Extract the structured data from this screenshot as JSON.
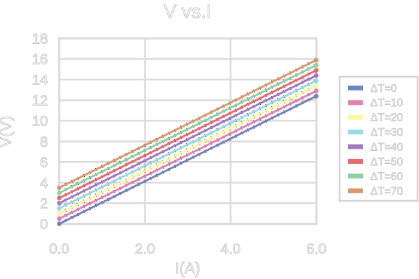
{
  "chart_data": {
    "type": "line",
    "title": "V vs.I",
    "xlabel": "I(A)",
    "ylabel": "V(V)",
    "xlim": [
      0,
      6
    ],
    "ylim": [
      0,
      18
    ],
    "grid": true,
    "legend_position": "right-outside",
    "xticks": {
      "values": [
        0,
        2,
        4,
        6
      ],
      "labels": [
        "0.0",
        "2.0",
        "4.0",
        "6.0"
      ]
    },
    "yticks": {
      "values": [
        0,
        2,
        4,
        6,
        8,
        10,
        12,
        14,
        16,
        18
      ],
      "labels": [
        "0",
        "2",
        "4",
        "6",
        "8",
        "10",
        "12",
        "14",
        "16",
        "18"
      ]
    },
    "x": [
      0,
      6
    ],
    "series": [
      {
        "name": "ΔT=0",
        "color": "#7183c1",
        "values": [
          0.0,
          12.4
        ]
      },
      {
        "name": "ΔT=10",
        "color": "#e77fb2",
        "values": [
          0.5,
          12.9
        ]
      },
      {
        "name": "ΔT=20",
        "color": "#fbf7a3",
        "values": [
          1.0,
          13.4
        ]
      },
      {
        "name": "ΔT=30",
        "color": "#97dbe4",
        "values": [
          1.5,
          13.9
        ]
      },
      {
        "name": "ΔT=40",
        "color": "#a478c4",
        "values": [
          2.0,
          14.4
        ]
      },
      {
        "name": "ΔT=50",
        "color": "#e86a6d",
        "values": [
          2.5,
          14.9
        ]
      },
      {
        "name": "ΔT=60",
        "color": "#90d0a6",
        "values": [
          3.0,
          15.4
        ]
      },
      {
        "name": "ΔT=70",
        "color": "#d9996c",
        "values": [
          3.5,
          15.9
        ]
      }
    ],
    "style": {
      "grid_color": "#dcdcdc",
      "legend_border_color": "#d4d4d4",
      "text_outline_color": "#c9c9c9",
      "fit_dash_color": "#2a2a2a",
      "background": "#ffffff"
    }
  }
}
